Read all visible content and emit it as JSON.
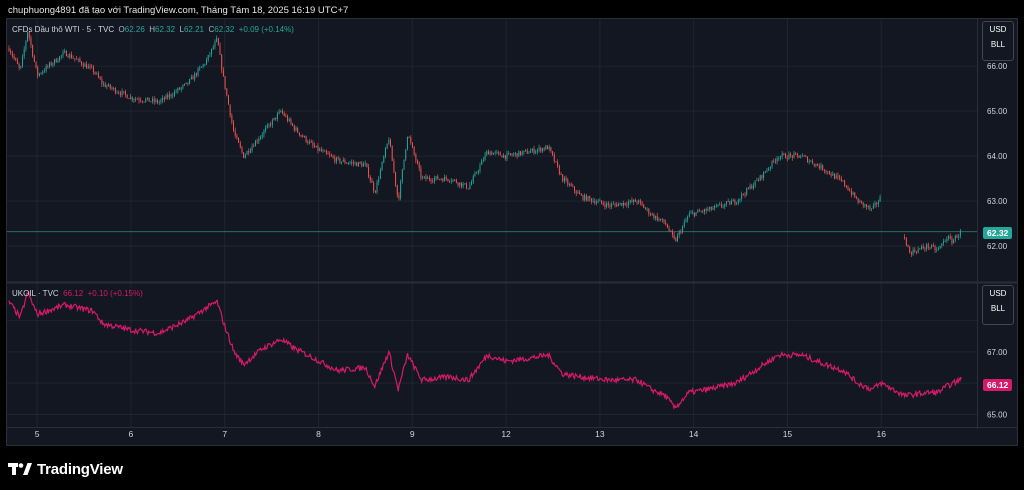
{
  "header": {
    "text": "chuphuong4891 đã tạo với TradingView.com, Tháng Tám 18, 2025 16:19 UTC+7"
  },
  "footer": {
    "brand": "TradingView",
    "logo_icon": "tradingview-logo-icon"
  },
  "colors": {
    "background": "#131722",
    "grid": "#2a2e39",
    "up": "#26a69a",
    "down": "#ef5350",
    "ukoil": "#d6196b",
    "last_line": "#2a6b64"
  },
  "panes": {
    "top": {
      "legend": {
        "symbol": "CFDs Dầu thô WTI · 5 · TVC",
        "o_label": "O",
        "o_value": "62.26",
        "h_label": "H",
        "h_value": "62.32",
        "l_label": "L",
        "l_value": "62.21",
        "c_label": "C",
        "c_value": "62.32",
        "change": "+0.09 (+0.14%)"
      },
      "currency": "USD",
      "unit": "BLL",
      "last_price": "62.32"
    },
    "bottom": {
      "legend": {
        "symbol": "UKOIL · TVC",
        "value": "66.12",
        "change": "+0.10 (+0.15%)"
      },
      "currency": "USD",
      "unit": "BLL",
      "last_price": "66.12"
    }
  },
  "chart_data": [
    {
      "type": "candlestick",
      "title": "CFDs Dầu thô WTI · 5 · TVC",
      "x_tick_labels": [
        "5",
        "6",
        "7",
        "8",
        "9",
        "12",
        "13",
        "14",
        "15",
        "16"
      ],
      "y_ticks": [
        62.0,
        63.0,
        64.0,
        65.0,
        66.0
      ],
      "ylim": [
        61.2,
        67.05
      ],
      "last": 62.32,
      "grid": true,
      "series_path": [
        [
          0.0,
          66.4
        ],
        [
          0.12,
          65.9
        ],
        [
          0.2,
          66.8
        ],
        [
          0.3,
          65.8
        ],
        [
          0.6,
          66.3
        ],
        [
          0.9,
          65.9
        ],
        [
          1.0,
          65.6
        ],
        [
          1.3,
          65.3
        ],
        [
          1.6,
          65.2
        ],
        [
          1.9,
          65.6
        ],
        [
          2.1,
          66.1
        ],
        [
          2.22,
          66.6
        ],
        [
          2.28,
          65.8
        ],
        [
          2.4,
          64.5
        ],
        [
          2.5,
          64.0
        ],
        [
          2.7,
          64.5
        ],
        [
          2.9,
          65.0
        ],
        [
          3.05,
          64.6
        ],
        [
          3.25,
          64.2
        ],
        [
          3.5,
          63.9
        ],
        [
          3.8,
          63.8
        ],
        [
          3.9,
          63.2
        ],
        [
          4.05,
          64.4
        ],
        [
          4.15,
          63.0
        ],
        [
          4.25,
          64.5
        ],
        [
          4.4,
          63.5
        ],
        [
          4.7,
          63.5
        ],
        [
          4.9,
          63.3
        ],
        [
          5.1,
          64.1
        ],
        [
          5.3,
          64.0
        ],
        [
          5.55,
          64.1
        ],
        [
          5.75,
          64.2
        ],
        [
          5.9,
          63.5
        ],
        [
          6.1,
          63.1
        ],
        [
          6.4,
          62.9
        ],
        [
          6.7,
          63.0
        ],
        [
          6.85,
          62.7
        ],
        [
          7.0,
          62.5
        ],
        [
          7.1,
          62.1
        ],
        [
          7.25,
          62.7
        ],
        [
          7.45,
          62.8
        ],
        [
          7.6,
          62.9
        ],
        [
          7.75,
          63.0
        ],
        [
          8.0,
          63.5
        ],
        [
          8.2,
          64.0
        ],
        [
          8.45,
          64.0
        ],
        [
          8.7,
          63.7
        ],
        [
          8.9,
          63.4
        ],
        [
          9.05,
          63.0
        ],
        [
          9.2,
          62.8
        ],
        [
          9.3,
          63.1
        ]
      ],
      "series_path_after_gap": [
        [
          9.55,
          62.2
        ],
        [
          9.6,
          61.85
        ],
        [
          9.8,
          62.0
        ],
        [
          9.9,
          61.9
        ],
        [
          10.0,
          62.2
        ],
        [
          10.05,
          62.1
        ],
        [
          10.15,
          62.32
        ]
      ]
    },
    {
      "type": "line",
      "title": "UKOIL · TVC",
      "x_tick_labels": [
        "5",
        "6",
        "7",
        "8",
        "9",
        "12",
        "13",
        "14",
        "15",
        "16"
      ],
      "y_ticks": [
        65.0,
        66.0,
        67.0,
        68.0
      ],
      "ylim": [
        64.6,
        69.2
      ],
      "last": 66.12,
      "grid": true,
      "series_path": [
        [
          0.0,
          68.6
        ],
        [
          0.12,
          68.1
        ],
        [
          0.2,
          68.9
        ],
        [
          0.3,
          68.2
        ],
        [
          0.6,
          68.5
        ],
        [
          0.9,
          68.3
        ],
        [
          1.0,
          67.9
        ],
        [
          1.3,
          67.7
        ],
        [
          1.6,
          67.6
        ],
        [
          1.9,
          68.0
        ],
        [
          2.1,
          68.4
        ],
        [
          2.22,
          68.6
        ],
        [
          2.28,
          68.0
        ],
        [
          2.4,
          67.0
        ],
        [
          2.5,
          66.6
        ],
        [
          2.7,
          67.1
        ],
        [
          2.9,
          67.4
        ],
        [
          3.05,
          67.1
        ],
        [
          3.25,
          66.8
        ],
        [
          3.5,
          66.4
        ],
        [
          3.8,
          66.5
        ],
        [
          3.9,
          65.9
        ],
        [
          4.05,
          67.0
        ],
        [
          4.15,
          65.8
        ],
        [
          4.25,
          66.9
        ],
        [
          4.4,
          66.1
        ],
        [
          4.7,
          66.2
        ],
        [
          4.9,
          66.1
        ],
        [
          5.1,
          66.9
        ],
        [
          5.3,
          66.7
        ],
        [
          5.55,
          66.8
        ],
        [
          5.75,
          66.9
        ],
        [
          5.9,
          66.3
        ],
        [
          6.1,
          66.2
        ],
        [
          6.4,
          66.1
        ],
        [
          6.7,
          66.1
        ],
        [
          6.85,
          65.8
        ],
        [
          7.0,
          65.6
        ],
        [
          7.1,
          65.2
        ],
        [
          7.25,
          65.7
        ],
        [
          7.45,
          65.8
        ],
        [
          7.6,
          65.9
        ],
        [
          7.75,
          66.0
        ],
        [
          8.0,
          66.5
        ],
        [
          8.2,
          66.9
        ],
        [
          8.45,
          66.9
        ],
        [
          8.7,
          66.6
        ],
        [
          8.9,
          66.4
        ],
        [
          9.05,
          66.0
        ],
        [
          9.2,
          65.8
        ],
        [
          9.3,
          66.0
        ],
        [
          9.55,
          65.6
        ],
        [
          9.8,
          65.7
        ],
        [
          9.9,
          65.7
        ],
        [
          10.0,
          65.9
        ],
        [
          10.15,
          66.12
        ]
      ]
    }
  ]
}
